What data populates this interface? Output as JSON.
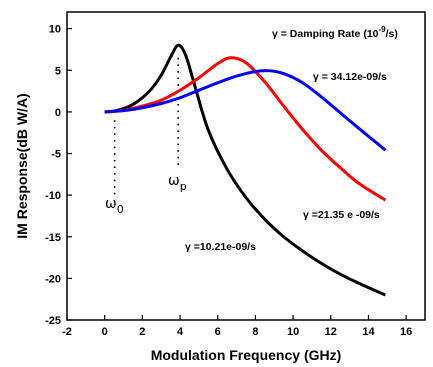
{
  "chart_data": {
    "type": "line",
    "xlabel": "Modulation Frequency (GHz)",
    "ylabel": "IM Response(dB W/A)",
    "xlim": [
      -2,
      17
    ],
    "ylim": [
      -25,
      12
    ],
    "xticks": [
      -2,
      0,
      2,
      4,
      6,
      8,
      10,
      12,
      14,
      16
    ],
    "yticks": [
      -25,
      -20,
      -15,
      -10,
      -5,
      0,
      5,
      10
    ],
    "grid": false,
    "series": [
      {
        "name": "γ =10.21e-09/s",
        "color": "#000000",
        "x": [
          0,
          0.5,
          1,
          1.5,
          2,
          2.5,
          3,
          3.5,
          3.9,
          4.3,
          4.8,
          5.5,
          6.5,
          7.5,
          8.5,
          9.5,
          10.5,
          11.5,
          12.5,
          13.5,
          14.9
        ],
        "y": [
          0,
          0.1,
          0.4,
          0.9,
          1.7,
          2.8,
          4.4,
          6.6,
          8.0,
          6.8,
          3.0,
          -2.2,
          -6.9,
          -10.3,
          -12.9,
          -15.0,
          -16.7,
          -18.2,
          -19.5,
          -20.6,
          -22.0
        ]
      },
      {
        "name": "γ =21.35 e -09/s",
        "color": "#ff0000",
        "x": [
          0,
          1,
          2,
          3,
          4,
          5,
          6,
          6.7,
          7.5,
          8.5,
          9.5,
          10.5,
          11.5,
          12.5,
          13.5,
          14.9
        ],
        "y": [
          0,
          0.2,
          0.7,
          1.4,
          2.6,
          4.1,
          5.8,
          6.5,
          5.9,
          3.6,
          0.7,
          -2.1,
          -4.6,
          -6.7,
          -8.6,
          -10.6
        ]
      },
      {
        "name": "γ =  34.12e-09/s",
        "color": "#0000ff",
        "x": [
          0,
          1,
          2,
          3,
          4,
          5,
          6,
          7,
          8,
          8.7,
          9.5,
          10.5,
          11.5,
          12.5,
          13.5,
          14.9
        ],
        "y": [
          0,
          0.15,
          0.5,
          1.0,
          1.7,
          2.6,
          3.5,
          4.3,
          4.85,
          4.95,
          4.6,
          3.5,
          1.8,
          -0.1,
          -2.0,
          -4.6
        ]
      }
    ],
    "annotations": {
      "legend_title": "γ = Damping Rate (10",
      "legend_exp": "-9",
      "legend_unit": "/s)",
      "blue_label": "γ =  34.12e-09/s",
      "red_label": "γ =21.35 e -09/s",
      "black_label": "γ =10.21e-09/s",
      "omega0": "ω",
      "omega0_sub": "0",
      "omegap": "ω",
      "omegap_sub": "p"
    }
  }
}
